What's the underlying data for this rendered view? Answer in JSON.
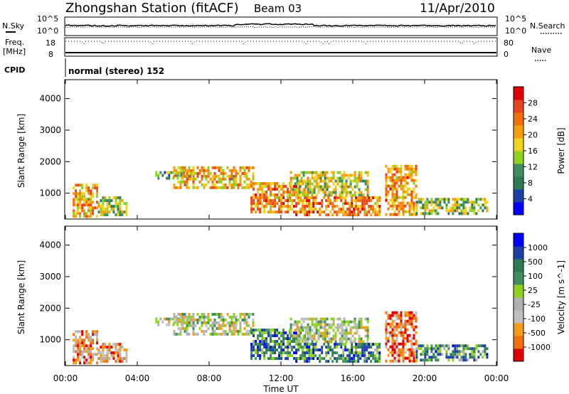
{
  "header": {
    "station": "Zhongshan Station (fitACF)",
    "beam": "Beam 03",
    "date": "11/Apr/2010"
  },
  "noise_panel": {
    "left_label": "N.Sky",
    "right_label": "N.Search",
    "tick_top": "10^5",
    "tick_bottom": "10^0"
  },
  "freq_panel": {
    "left_label": "Freq.",
    "unit_label": "[MHz]",
    "right_label": "Nave",
    "left_ticks": [
      "18",
      "8"
    ],
    "right_ticks": [
      "80",
      "0"
    ]
  },
  "cpid": {
    "label": "CPID",
    "value": "normal (stereo) 152"
  },
  "colors": {
    "power": [
      "#0000ff",
      "#1e3fa8",
      "#2f7a55",
      "#3f8f5f",
      "#8fd11e",
      "#f2d31b",
      "#f4a00e",
      "#f2700e",
      "#e8461a",
      "#e00000"
    ],
    "velocity": [
      "#e00000",
      "#f2700e",
      "#f49a14",
      "#c0c0c0",
      "#b0b0b0",
      "#8fd11e",
      "#3f8f5f",
      "#2f7a55",
      "#1e3fa8",
      "#0000ff"
    ]
  },
  "chart_data": [
    {
      "type": "heatmap",
      "title": "Power",
      "xlabel": "",
      "ylabel": "Slant Range [km]",
      "x_ticks": [
        "00:00",
        "04:00",
        "08:00",
        "12:00",
        "16:00",
        "20:00",
        "00:00"
      ],
      "xlim_hours": [
        0,
        24
      ],
      "y_ticks": [
        1000,
        2000,
        3000,
        4000
      ],
      "ylim": [
        180,
        4600
      ],
      "colorbar": {
        "label": "Power [dB]",
        "ticks": [
          4,
          8,
          12,
          16,
          20,
          24,
          28
        ],
        "range": [
          0,
          32
        ]
      },
      "echo_regions": [
        {
          "t0": 0.4,
          "t1": 1.8,
          "r0": 300,
          "r1": 1300,
          "level": 0.65
        },
        {
          "t0": 1.8,
          "t1": 3.4,
          "r0": 300,
          "r1": 900,
          "level": 0.45
        },
        {
          "t0": 5.0,
          "t1": 7.0,
          "r0": 1500,
          "r1": 1700,
          "level": 0.35
        },
        {
          "t0": 6.0,
          "t1": 10.5,
          "r0": 1150,
          "r1": 1850,
          "level": 0.62
        },
        {
          "t0": 10.3,
          "t1": 13.5,
          "r0": 380,
          "r1": 1350,
          "level": 0.7
        },
        {
          "t0": 12.5,
          "t1": 16.8,
          "r0": 900,
          "r1": 1700,
          "level": 0.5
        },
        {
          "t0": 12.8,
          "t1": 17.5,
          "r0": 300,
          "r1": 900,
          "level": 0.72
        },
        {
          "t0": 17.8,
          "t1": 19.5,
          "r0": 300,
          "r1": 1900,
          "level": 0.68
        },
        {
          "t0": 19.5,
          "t1": 23.5,
          "r0": 350,
          "r1": 850,
          "level": 0.45
        }
      ]
    },
    {
      "type": "heatmap",
      "title": "Velocity",
      "xlabel": "Time UT",
      "ylabel": "Slant Range [km]",
      "x_ticks": [
        "00:00",
        "04:00",
        "08:00",
        "12:00",
        "16:00",
        "20:00",
        "00:00"
      ],
      "xlim_hours": [
        0,
        24
      ],
      "y_ticks": [
        1000,
        2000,
        3000,
        4000
      ],
      "ylim": [
        180,
        4600
      ],
      "colorbar": {
        "label": "Velocity [m s^-1]",
        "ticks": [
          "1000",
          "500",
          "100",
          "25",
          "-25",
          "-100",
          "-500",
          "-1000"
        ]
      },
      "echo_regions": [
        {
          "t0": 0.4,
          "t1": 1.8,
          "r0": 300,
          "r1": 1300,
          "level": 0.25
        },
        {
          "t0": 1.8,
          "t1": 3.4,
          "r0": 300,
          "r1": 900,
          "level": 0.25
        },
        {
          "t0": 5.0,
          "t1": 7.0,
          "r0": 1500,
          "r1": 1700,
          "level": 0.45
        },
        {
          "t0": 6.0,
          "t1": 10.5,
          "r0": 1150,
          "r1": 1850,
          "level": 0.45
        },
        {
          "t0": 10.3,
          "t1": 13.5,
          "r0": 380,
          "r1": 1350,
          "level": 0.72
        },
        {
          "t0": 12.5,
          "t1": 16.8,
          "r0": 900,
          "r1": 1700,
          "level": 0.45
        },
        {
          "t0": 12.8,
          "t1": 17.5,
          "r0": 300,
          "r1": 900,
          "level": 0.72
        },
        {
          "t0": 17.8,
          "t1": 19.5,
          "r0": 300,
          "r1": 1900,
          "level": 0.18
        },
        {
          "t0": 19.5,
          "t1": 23.5,
          "r0": 350,
          "r1": 850,
          "level": 0.7
        }
      ]
    }
  ]
}
